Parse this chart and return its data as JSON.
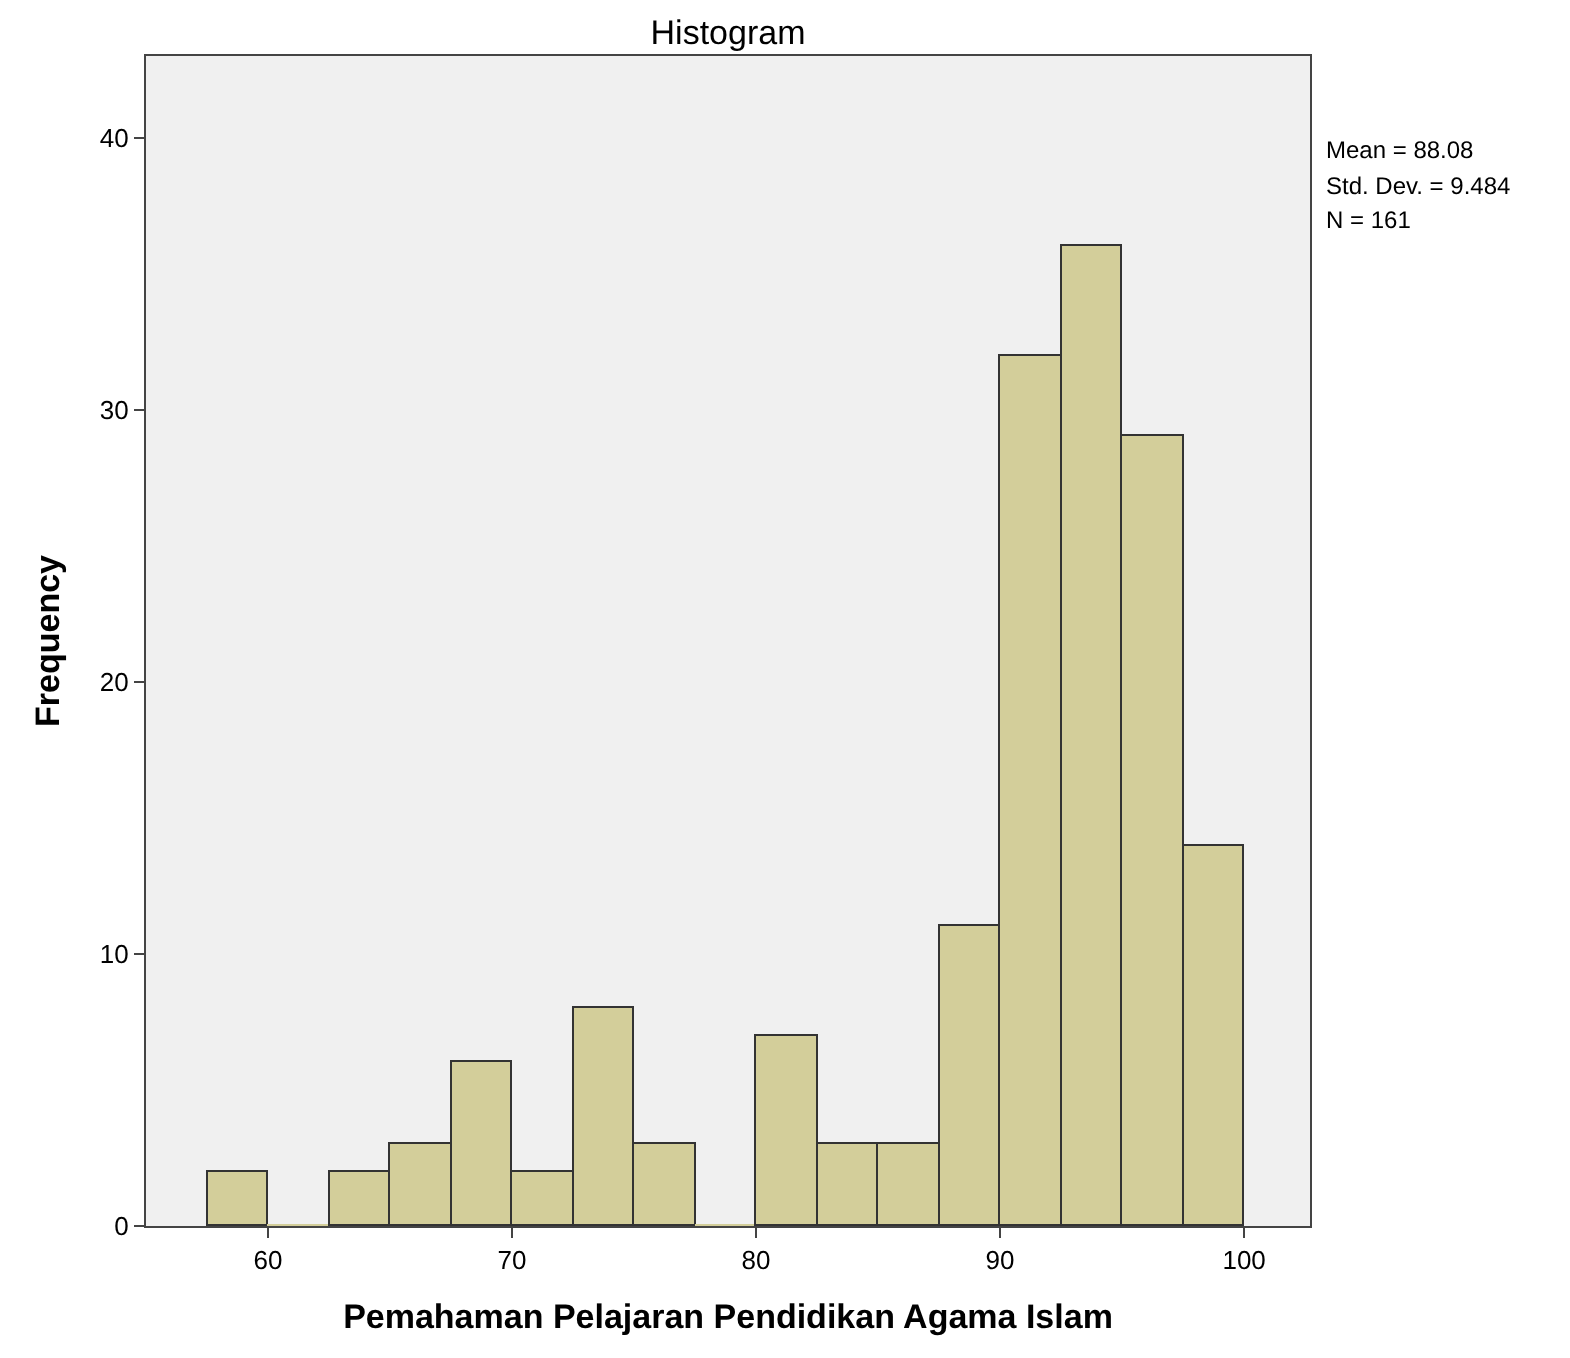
{
  "chart_data": {
    "type": "histogram",
    "title": "Histogram",
    "xlabel": "Pemahaman Pelajaran Pendidikan Agama Islam",
    "ylabel": "Frequency",
    "bins": [
      57.5,
      60,
      62.5,
      65,
      67.5,
      70,
      72.5,
      75,
      77.5,
      80,
      82.5,
      85,
      87.5,
      90,
      92.5,
      95,
      97.5,
      100
    ],
    "values": [
      2,
      0,
      2,
      3,
      6,
      2,
      8,
      3,
      0,
      7,
      3,
      3,
      11,
      32,
      36,
      29,
      14
    ],
    "color": "#d3ce9a",
    "xlim": [
      55,
      102.7
    ],
    "xticks": [
      60,
      70,
      80,
      90,
      100
    ],
    "ylim": [
      0,
      43
    ],
    "yticks": [
      0,
      10,
      20,
      30,
      40
    ],
    "grid": false,
    "annotations": [
      "Mean = 88.08",
      "Std. Dev. = 9.484",
      "N = 161"
    ]
  }
}
